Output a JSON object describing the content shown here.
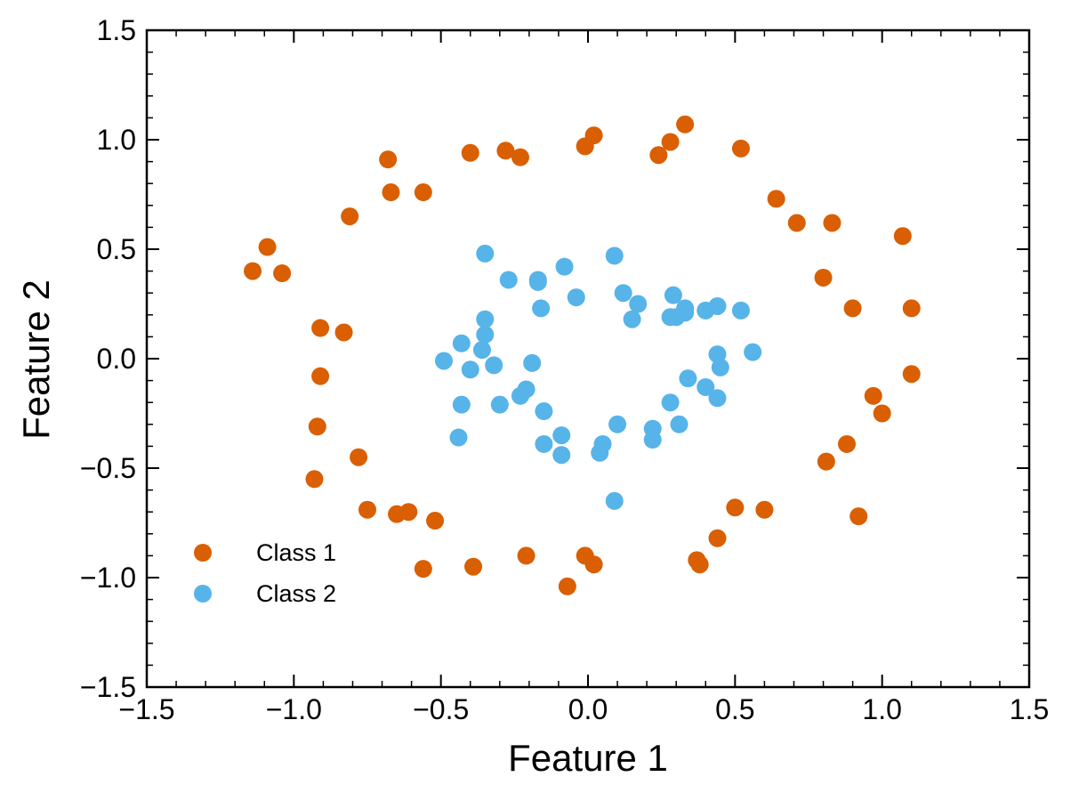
{
  "chart_data": {
    "type": "scatter",
    "title": "",
    "xlabel": "Feature 1",
    "ylabel": "Feature 2",
    "xlim": [
      -1.5,
      1.5
    ],
    "ylim": [
      -1.5,
      1.5
    ],
    "xticks": [
      -1.5,
      -1.0,
      -0.5,
      0.0,
      0.5,
      1.0,
      1.5
    ],
    "yticks": [
      -1.5,
      -1.0,
      -0.5,
      0.0,
      0.5,
      1.0,
      1.5
    ],
    "xtick_labels": [
      "−1.5",
      "−1.0",
      "−0.5",
      "0.0",
      "0.5",
      "1.0",
      "1.5"
    ],
    "ytick_labels": [
      "−1.5",
      "−1.0",
      "−0.5",
      "0.0",
      "0.5",
      "1.0",
      "1.5"
    ],
    "grid": false,
    "legend_position": "lower-left",
    "series": [
      {
        "name": "Class 1",
        "color": "#d95f02",
        "points": [
          [
            -1.09,
            0.51
          ],
          [
            -1.14,
            0.4
          ],
          [
            -1.04,
            0.39
          ],
          [
            -0.81,
            0.65
          ],
          [
            -0.68,
            0.91
          ],
          [
            -0.67,
            0.76
          ],
          [
            -0.56,
            0.76
          ],
          [
            -0.4,
            0.94
          ],
          [
            -0.28,
            0.95
          ],
          [
            -0.23,
            0.92
          ],
          [
            -0.01,
            0.97
          ],
          [
            0.02,
            1.02
          ],
          [
            0.24,
            0.93
          ],
          [
            0.28,
            0.99
          ],
          [
            0.33,
            1.07
          ],
          [
            0.52,
            0.96
          ],
          [
            0.64,
            0.73
          ],
          [
            0.71,
            0.62
          ],
          [
            0.83,
            0.62
          ],
          [
            1.07,
            0.56
          ],
          [
            0.8,
            0.37
          ],
          [
            0.9,
            0.23
          ],
          [
            1.1,
            0.23
          ],
          [
            1.1,
            -0.07
          ],
          [
            0.97,
            -0.17
          ],
          [
            1.0,
            -0.25
          ],
          [
            0.88,
            -0.39
          ],
          [
            0.81,
            -0.47
          ],
          [
            0.92,
            -0.72
          ],
          [
            0.6,
            -0.69
          ],
          [
            0.5,
            -0.68
          ],
          [
            0.44,
            -0.82
          ],
          [
            0.37,
            -0.92
          ],
          [
            0.38,
            -0.94
          ],
          [
            0.02,
            -0.94
          ],
          [
            -0.01,
            -0.9
          ],
          [
            -0.07,
            -1.04
          ],
          [
            -0.21,
            -0.9
          ],
          [
            -0.39,
            -0.95
          ],
          [
            -0.56,
            -0.96
          ],
          [
            -0.52,
            -0.74
          ],
          [
            -0.61,
            -0.7
          ],
          [
            -0.65,
            -0.71
          ],
          [
            -0.75,
            -0.69
          ],
          [
            -0.78,
            -0.45
          ],
          [
            -0.93,
            -0.55
          ],
          [
            -0.92,
            -0.31
          ],
          [
            -0.91,
            -0.08
          ],
          [
            -0.91,
            0.14
          ],
          [
            -0.83,
            0.12
          ]
        ]
      },
      {
        "name": "Class 2",
        "color": "#56b4e9",
        "points": [
          [
            -0.35,
            0.48
          ],
          [
            -0.27,
            0.36
          ],
          [
            -0.17,
            0.36
          ],
          [
            -0.17,
            0.35
          ],
          [
            -0.16,
            0.23
          ],
          [
            -0.08,
            0.42
          ],
          [
            -0.04,
            0.28
          ],
          [
            0.09,
            0.47
          ],
          [
            0.12,
            0.3
          ],
          [
            0.17,
            0.25
          ],
          [
            0.15,
            0.18
          ],
          [
            0.29,
            0.29
          ],
          [
            0.28,
            0.19
          ],
          [
            0.3,
            0.19
          ],
          [
            0.33,
            0.23
          ],
          [
            0.33,
            0.21
          ],
          [
            0.4,
            0.22
          ],
          [
            0.44,
            0.24
          ],
          [
            0.52,
            0.22
          ],
          [
            0.56,
            0.03
          ],
          [
            0.44,
            0.02
          ],
          [
            0.45,
            -0.04
          ],
          [
            0.34,
            -0.09
          ],
          [
            0.4,
            -0.13
          ],
          [
            0.44,
            -0.18
          ],
          [
            0.28,
            -0.2
          ],
          [
            0.31,
            -0.3
          ],
          [
            0.22,
            -0.32
          ],
          [
            0.22,
            -0.37
          ],
          [
            0.1,
            -0.3
          ],
          [
            0.05,
            -0.39
          ],
          [
            0.04,
            -0.43
          ],
          [
            0.09,
            -0.65
          ],
          [
            -0.09,
            -0.35
          ],
          [
            -0.09,
            -0.44
          ],
          [
            -0.15,
            -0.39
          ],
          [
            -0.15,
            -0.24
          ],
          [
            -0.19,
            -0.02
          ],
          [
            -0.21,
            -0.14
          ],
          [
            -0.23,
            -0.17
          ],
          [
            -0.3,
            -0.21
          ],
          [
            -0.32,
            -0.03
          ],
          [
            -0.4,
            -0.05
          ],
          [
            -0.36,
            0.04
          ],
          [
            -0.35,
            0.11
          ],
          [
            -0.35,
            0.18
          ],
          [
            -0.43,
            0.07
          ],
          [
            -0.49,
            -0.01
          ],
          [
            -0.43,
            -0.21
          ],
          [
            -0.44,
            -0.36
          ]
        ]
      }
    ]
  }
}
